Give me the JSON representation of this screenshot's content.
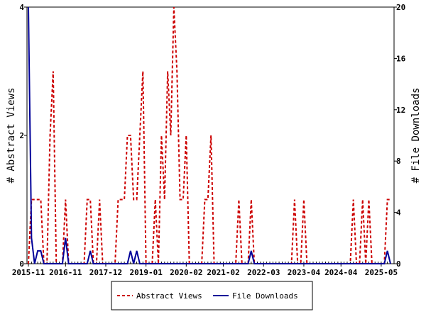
{
  "chart_data": {
    "type": "line",
    "y_label": "# Abstract Views",
    "y2_label": "# File Downloads",
    "categories": [
      "2015-11",
      null,
      null,
      null,
      null,
      null,
      null,
      null,
      null,
      null,
      null,
      null,
      "2016-11",
      null,
      null,
      null,
      null,
      null,
      null,
      null,
      null,
      null,
      null,
      null,
      null,
      "2017-12",
      null,
      null,
      null,
      null,
      null,
      null,
      null,
      null,
      null,
      null,
      null,
      null,
      "2019-01",
      null,
      null,
      null,
      null,
      null,
      null,
      null,
      null,
      null,
      null,
      null,
      null,
      "2020-02",
      null,
      null,
      null,
      null,
      null,
      null,
      null,
      null,
      null,
      null,
      null,
      "2021-02",
      null,
      null,
      null,
      null,
      null,
      null,
      null,
      null,
      null,
      null,
      null,
      null,
      "2022-03",
      null,
      null,
      null,
      null,
      null,
      null,
      null,
      null,
      null,
      null,
      null,
      null,
      "2023-04",
      null,
      null,
      null,
      null,
      null,
      null,
      null,
      null,
      null,
      null,
      null,
      "2024-04",
      null,
      null,
      null,
      null,
      null,
      null,
      null,
      null,
      null,
      null,
      null,
      null,
      "2025-05",
      null,
      null,
      null
    ],
    "series": [
      {
        "name": "Abstract Views",
        "color": "#cc0000",
        "dashed": true,
        "values": [
          0,
          1,
          1,
          1,
          1,
          0,
          0,
          2,
          3,
          0,
          0,
          0,
          1,
          0,
          0,
          0,
          0,
          0,
          0,
          1,
          1,
          0,
          0,
          1,
          0,
          0,
          0,
          0,
          0,
          1,
          1,
          1,
          2,
          2,
          1,
          1,
          2,
          3,
          0,
          0,
          0,
          1,
          0,
          2,
          1,
          3,
          2,
          4,
          3,
          1,
          1,
          2,
          0,
          0,
          0,
          0,
          0,
          1,
          1,
          2,
          0,
          0,
          0,
          0,
          0,
          0,
          0,
          0,
          1,
          0,
          0,
          0,
          1,
          0,
          0,
          0,
          0,
          0,
          0,
          0,
          0,
          0,
          0,
          0,
          0,
          0,
          1,
          0,
          0,
          1,
          0,
          0,
          0,
          0,
          0,
          0,
          0,
          0,
          0,
          0,
          0,
          0,
          0,
          0,
          0,
          1,
          0,
          0,
          1,
          0,
          1,
          0,
          0,
          0,
          0,
          0,
          1,
          1
        ]
      },
      {
        "name": "File Downloads",
        "color": "#000099",
        "axis": "y2",
        "values": [
          20,
          2,
          0,
          1,
          1,
          0,
          0,
          0,
          0,
          0,
          0,
          0,
          2,
          0,
          0,
          0,
          0,
          0,
          0,
          0,
          1,
          0,
          0,
          0,
          0,
          0,
          0,
          0,
          0,
          0,
          0,
          0,
          0,
          1,
          0,
          1,
          0,
          0,
          0,
          0,
          0,
          0,
          0,
          0,
          0,
          0,
          0,
          0,
          0,
          0,
          0,
          0,
          0,
          0,
          0,
          0,
          0,
          0,
          0,
          0,
          0,
          0,
          0,
          0,
          0,
          0,
          0,
          0,
          0,
          0,
          0,
          0,
          1,
          0,
          0,
          0,
          0,
          0,
          0,
          0,
          0,
          0,
          0,
          0,
          0,
          0,
          0,
          0,
          0,
          0,
          0,
          0,
          0,
          0,
          0,
          0,
          0,
          0,
          0,
          0,
          0,
          0,
          0,
          0,
          0,
          0,
          0,
          0,
          0,
          0,
          0,
          0,
          0,
          0,
          0,
          0,
          1,
          0
        ]
      }
    ],
    "ylim": [
      0,
      4
    ],
    "yticks": [
      0,
      2,
      4
    ],
    "y2lim": [
      0,
      20
    ],
    "y2ticks": [
      0,
      4,
      8,
      12,
      16,
      20
    ],
    "legend": "bottom"
  }
}
